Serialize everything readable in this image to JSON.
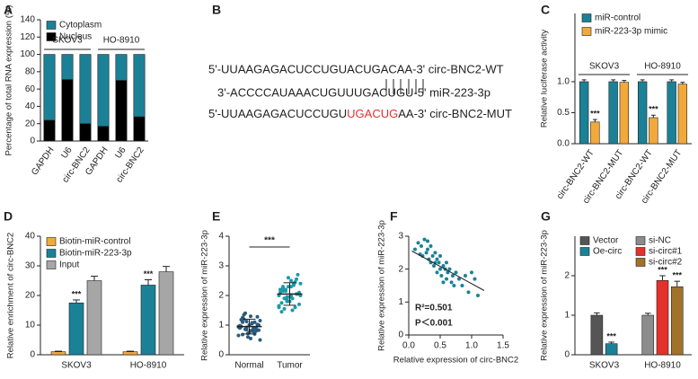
{
  "chart_data": [
    {
      "type": "stacked_bar",
      "panel": "A",
      "ylabel": "Percentage of total RNA expression (%)",
      "categories": [
        "GAPDH",
        "U6",
        "circ-BNC2",
        "GAPDH",
        "U6",
        "circ-BNC2"
      ],
      "groups": [
        "SKOV3",
        "HO-8910"
      ],
      "series": [
        {
          "name": "Cytoplasm",
          "color": "#1b8197",
          "values": [
            76,
            29,
            80,
            83,
            30,
            72
          ]
        },
        {
          "name": "Nucleus",
          "color": "#000000",
          "values": [
            24,
            71,
            20,
            17,
            70,
            28
          ]
        }
      ],
      "ylim": [
        0,
        140
      ],
      "yticks": [
        0,
        20,
        40,
        60,
        80,
        100,
        120,
        140
      ]
    },
    {
      "type": "bar",
      "panel": "C",
      "ylabel": "Relative luciferase activity",
      "categories": [
        "circ-BNC2-WT",
        "circ-BNC2-MUT",
        "circ-BNC2-WT",
        "circ-BNC2-MUT"
      ],
      "groups": [
        "SKOV3",
        "HO-8910"
      ],
      "series": [
        {
          "name": "miR-control",
          "color": "#1b8197",
          "values": [
            1,
            1,
            1,
            1
          ],
          "errors": [
            0.03,
            0.03,
            0.03,
            0.03
          ],
          "significance": [
            null,
            null,
            null,
            null
          ]
        },
        {
          "name": "miR-223-3p mimic",
          "color": "#f2a93b",
          "values": [
            0.35,
            0.99,
            0.42,
            0.96
          ],
          "errors": [
            0.04,
            0.03,
            0.04,
            0.03
          ],
          "significance": [
            "***",
            null,
            "***",
            null
          ]
        }
      ],
      "ylim": [
        0,
        2.1
      ],
      "yticks": [
        {
          "value": 0,
          "label": "0.0"
        },
        {
          "value": 0.5,
          "label": "0.5"
        },
        {
          "value": 1,
          "label": "1.0"
        }
      ]
    },
    {
      "type": "bar",
      "panel": "D",
      "ylabel": "Relative enrichment of circ-BNC2",
      "categories": [
        "SKOV3",
        "HO-8910"
      ],
      "series": [
        {
          "name": "Biotin-miR-control",
          "color": "#f2a93b",
          "values": [
            1,
            1
          ],
          "errors": [
            0.2,
            0.2
          ],
          "significance": [
            null,
            null
          ]
        },
        {
          "name": "Biotin-miR-223-3p",
          "color": "#1b8197",
          "values": [
            17.5,
            23.5
          ],
          "errors": [
            1.0,
            1.8
          ],
          "significance": [
            "***",
            "***"
          ]
        },
        {
          "name": "Input",
          "color": "#a6a6a6",
          "values": [
            25,
            28
          ],
          "errors": [
            1.5,
            1.8
          ],
          "significance": [
            null,
            null
          ]
        }
      ],
      "ylim": [
        0,
        40
      ],
      "yticks": [
        0,
        10,
        20,
        30,
        40
      ]
    },
    {
      "type": "dotplot",
      "panel": "E",
      "ylabel": "Relative expression of miR-223-3p",
      "categories": [
        "Normal",
        "Tumor"
      ],
      "colors": [
        "#2b5a7e",
        "#1b9aa8"
      ],
      "points": [
        [
          0.95,
          1.1,
          0.85,
          1.3,
          0.7,
          1.0,
          0.9,
          1.2,
          0.6,
          1.05,
          0.8,
          1.15,
          0.95,
          1.4,
          0.75,
          0.88,
          1.02,
          0.65,
          1.25,
          0.92,
          0.55,
          1.1,
          0.83,
          0.98,
          1.35,
          0.72,
          1.08,
          0.9,
          0.5,
          1.18,
          0.86,
          1.0,
          0.78,
          1.28,
          0.94,
          0.68,
          1.12,
          0.81
        ],
        [
          2.0,
          2.3,
          1.8,
          2.5,
          1.6,
          2.1,
          2.2,
          1.9,
          2.6,
          1.5,
          2.05,
          2.4,
          1.75,
          2.15,
          1.95,
          2.35,
          2.7,
          1.65,
          2.25,
          1.85,
          2.0,
          2.45,
          1.7,
          2.1,
          1.55,
          2.3,
          1.9,
          2.55,
          2.0,
          1.45,
          2.2,
          1.8,
          2.4,
          2.05,
          1.6,
          2.15,
          1.95,
          2.3
        ]
      ],
      "mean": [
        0.95,
        2.05
      ],
      "sd": [
        0.25,
        0.38
      ],
      "significance": "***",
      "ylim": [
        0,
        4
      ],
      "yticks": [
        0,
        1,
        2,
        3,
        4
      ]
    },
    {
      "type": "scatter",
      "panel": "F",
      "ylabel": "Relative expression of miR-223-3p",
      "xlabel": "Relative expression of  circ-BNC2",
      "color": "#1b8197",
      "x": [
        0.1,
        0.15,
        0.2,
        0.22,
        0.25,
        0.28,
        0.3,
        0.32,
        0.35,
        0.35,
        0.38,
        0.4,
        0.42,
        0.45,
        0.45,
        0.48,
        0.5,
        0.5,
        0.52,
        0.55,
        0.58,
        0.6,
        0.6,
        0.62,
        0.65,
        0.68,
        0.7,
        0.72,
        0.75,
        0.8,
        0.85,
        0.9,
        0.95,
        1.0,
        1.05,
        1.1,
        0.3,
        0.18,
        0.55,
        0.42
      ],
      "y": [
        2.6,
        2.8,
        2.7,
        2.4,
        2.9,
        2.5,
        2.6,
        2.3,
        2.2,
        2.7,
        2.4,
        2.1,
        2.5,
        2.3,
        1.9,
        2.2,
        2.0,
        2.4,
        1.8,
        2.1,
        2.0,
        1.7,
        2.2,
        1.9,
        2.0,
        1.6,
        1.8,
        1.5,
        1.9,
        1.7,
        1.5,
        1.8,
        1.3,
        1.9,
        1.7,
        1.2,
        2.85,
        2.45,
        1.6,
        2.2
      ],
      "fit_x": [
        0.05,
        1.2
      ],
      "fit_y": [
        2.55,
        1.35
      ],
      "annotations": [
        "R²=0.501",
        "P＜0.001"
      ],
      "xlim": [
        0,
        1.5
      ],
      "xticks": [
        {
          "value": 0,
          "label": "0.0"
        },
        {
          "value": 0.5,
          "label": "0.5"
        },
        {
          "value": 1,
          "label": "1.0"
        },
        {
          "value": 1.5,
          "label": "1.5"
        }
      ],
      "ylim": [
        0,
        3
      ],
      "yticks": [
        0,
        1,
        2,
        3
      ]
    },
    {
      "type": "bar",
      "panel": "G",
      "ylabel": "Relative expression of miR-223-3p",
      "categories": [
        "SKOV3",
        "HO-8910"
      ],
      "series": [
        {
          "name": "Vector",
          "color": "#555555",
          "values": [
            1,
            null
          ],
          "errors": [
            0.06,
            null
          ],
          "significance": [
            null,
            null
          ]
        },
        {
          "name": "Oe-circ",
          "color": "#1b8197",
          "values": [
            0.28,
            null
          ],
          "errors": [
            0.04,
            null
          ],
          "significance": [
            "***",
            null
          ]
        },
        {
          "name": "si-NC",
          "color": "#8c8c8c",
          "values": [
            null,
            1
          ],
          "errors": [
            null,
            0.05
          ],
          "significance": [
            null,
            null
          ]
        },
        {
          "name": "si-circ#1",
          "color": "#e3312b",
          "values": [
            null,
            1.88
          ],
          "errors": [
            null,
            0.12
          ],
          "significance": [
            null,
            "***"
          ]
        },
        {
          "name": "si-circ#2",
          "color": "#a0722a",
          "values": [
            null,
            1.72
          ],
          "errors": [
            null,
            0.14
          ],
          "significance": [
            null,
            "***"
          ]
        }
      ],
      "ylim": [
        0,
        3
      ],
      "yticks": [
        0,
        1,
        2
      ]
    }
  ],
  "diagram": {
    "panel": "B",
    "wt": "5'-UUAAGAGACUCCUGUACUGACAA-3' circ-BNC2-WT",
    "mir": "3'-ACCCCAUAAACUGUUUGACUGU-5' miR-223-3p",
    "mut": [
      "5'-UUAAGAGACUCCUGU",
      "UGACUG",
      "AA-3' circ-BNC2-MUT"
    ]
  }
}
